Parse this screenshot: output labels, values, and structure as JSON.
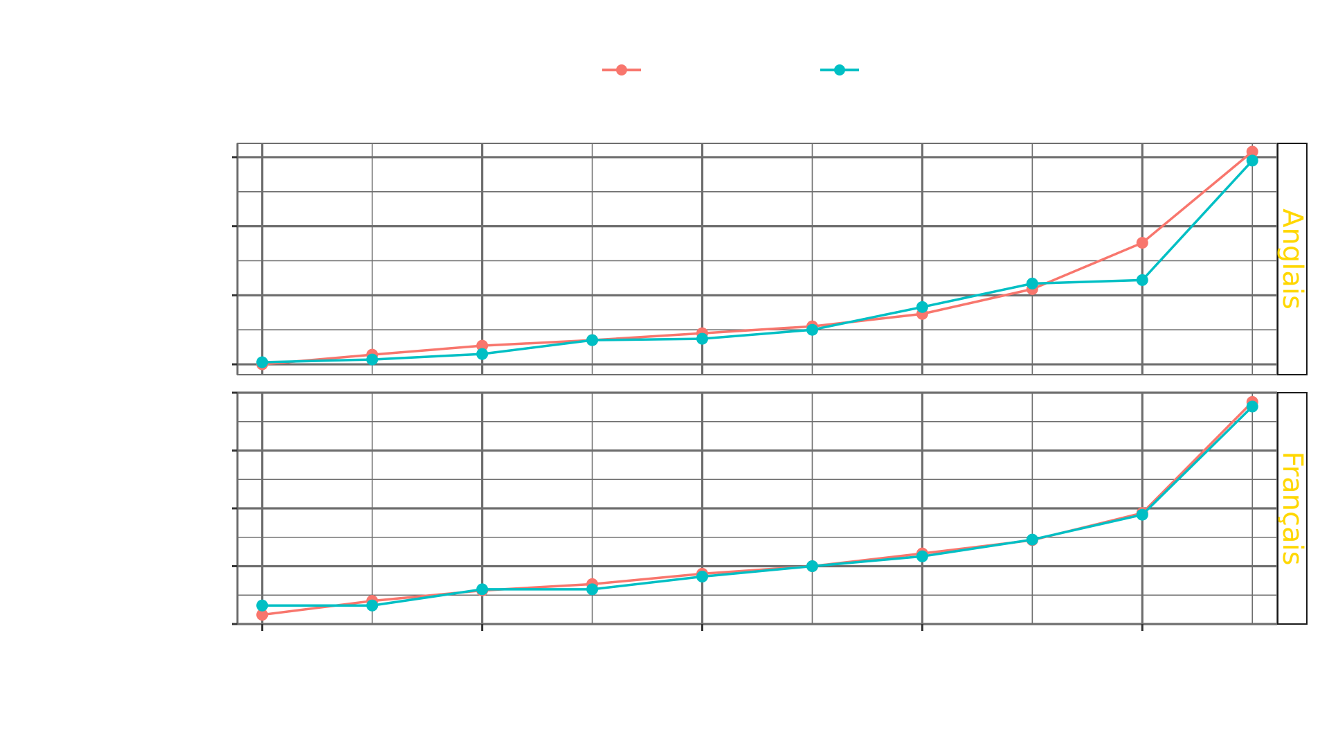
{
  "chart_data": {
    "type": "line",
    "facet_by": "language",
    "legend_position": "top",
    "grid": true,
    "x": [
      1,
      2,
      3,
      4,
      5,
      6,
      7,
      8,
      9,
      10
    ],
    "x_ticks": [
      1,
      3,
      5,
      7,
      9
    ],
    "series": [
      {
        "color": "#F8766D"
      },
      {
        "color": "#00BFC4"
      }
    ],
    "panels": [
      {
        "strip": "Anglais",
        "ylim": [
          -0.15,
          3.2
        ],
        "y_ticks": [
          0,
          1,
          2,
          3
        ],
        "series_values": [
          [
            0.0,
            0.14,
            0.27,
            0.35,
            0.45,
            0.55,
            0.73,
            1.09,
            1.76,
            3.08
          ],
          [
            0.03,
            0.07,
            0.15,
            0.35,
            0.37,
            0.5,
            0.83,
            1.17,
            1.22,
            2.95
          ]
        ]
      },
      {
        "strip": "Français",
        "ylim": [
          0.0,
          4.0
        ],
        "y_ticks": [
          0,
          1,
          2,
          3,
          4
        ],
        "series_values": [
          [
            0.16,
            0.4,
            0.58,
            0.69,
            0.87,
            1.0,
            1.22,
            1.45,
            1.92,
            3.84
          ],
          [
            0.32,
            0.32,
            0.6,
            0.6,
            0.82,
            1.0,
            1.17,
            1.46,
            1.89,
            3.76
          ]
        ]
      }
    ],
    "strip_color": "#FFD700"
  }
}
